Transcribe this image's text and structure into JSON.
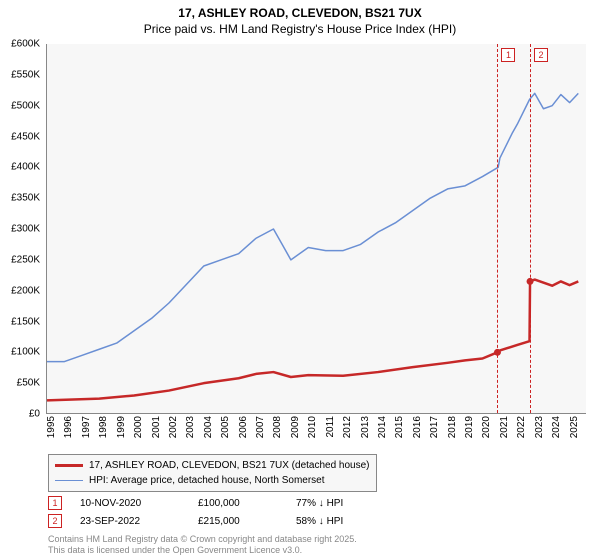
{
  "title": {
    "line1": "17, ASHLEY ROAD, CLEVEDON, BS21 7UX",
    "line2": "Price paid vs. HM Land Registry's House Price Index (HPI)"
  },
  "chart": {
    "type": "line",
    "background_color": "#f7f7f7",
    "axis_color": "#888888",
    "x_range": [
      1995,
      2026
    ],
    "y_range": [
      0,
      600
    ],
    "y_unit_prefix": "£",
    "y_unit_suffix": "K",
    "y_ticks": [
      0,
      50,
      100,
      150,
      200,
      250,
      300,
      350,
      400,
      450,
      500,
      550,
      600
    ],
    "x_ticks": [
      1995,
      1996,
      1997,
      1998,
      1999,
      2000,
      2001,
      2002,
      2003,
      2004,
      2005,
      2006,
      2007,
      2008,
      2009,
      2010,
      2011,
      2012,
      2013,
      2014,
      2015,
      2016,
      2017,
      2018,
      2019,
      2020,
      2021,
      2022,
      2023,
      2024,
      2025
    ],
    "series": [
      {
        "id": "hpi",
        "label": "HPI: Average price, detached house, North Somerset",
        "color": "#6a8fd4",
        "line_width": 1.5,
        "points": [
          [
            1995,
            85
          ],
          [
            1996,
            85
          ],
          [
            1997,
            95
          ],
          [
            1998,
            105
          ],
          [
            1999,
            115
          ],
          [
            2000,
            135
          ],
          [
            2001,
            155
          ],
          [
            2002,
            180
          ],
          [
            2003,
            210
          ],
          [
            2004,
            240
          ],
          [
            2005,
            250
          ],
          [
            2006,
            260
          ],
          [
            2007,
            285
          ],
          [
            2008,
            300
          ],
          [
            2008.5,
            275
          ],
          [
            2009,
            250
          ],
          [
            2010,
            270
          ],
          [
            2011,
            265
          ],
          [
            2012,
            265
          ],
          [
            2013,
            275
          ],
          [
            2014,
            295
          ],
          [
            2015,
            310
          ],
          [
            2016,
            330
          ],
          [
            2017,
            350
          ],
          [
            2018,
            365
          ],
          [
            2019,
            370
          ],
          [
            2020,
            385
          ],
          [
            2020.9,
            400
          ],
          [
            2021,
            415
          ],
          [
            2021.7,
            455
          ],
          [
            2022,
            470
          ],
          [
            2022.7,
            510
          ],
          [
            2023,
            520
          ],
          [
            2023.5,
            495
          ],
          [
            2024,
            500
          ],
          [
            2024.5,
            518
          ],
          [
            2025,
            505
          ],
          [
            2025.5,
            520
          ]
        ]
      },
      {
        "id": "price_paid",
        "label": "17, ASHLEY ROAD, CLEVEDON, BS21 7UX (detached house)",
        "color": "#c62828",
        "line_width": 2.5,
        "points": [
          [
            1995,
            22
          ],
          [
            1998,
            25
          ],
          [
            2000,
            30
          ],
          [
            2002,
            38
          ],
          [
            2004,
            50
          ],
          [
            2006,
            58
          ],
          [
            2007,
            65
          ],
          [
            2008,
            68
          ],
          [
            2009,
            60
          ],
          [
            2010,
            63
          ],
          [
            2012,
            62
          ],
          [
            2014,
            68
          ],
          [
            2016,
            76
          ],
          [
            2018,
            83
          ],
          [
            2019,
            87
          ],
          [
            2020,
            90
          ],
          [
            2020.86,
            100
          ],
          [
            2021,
            103
          ],
          [
            2022,
            112
          ],
          [
            2022.7,
            118
          ],
          [
            2022.73,
            215
          ],
          [
            2023,
            218
          ],
          [
            2024,
            208
          ],
          [
            2024.5,
            215
          ],
          [
            2025,
            209
          ],
          [
            2025.5,
            215
          ]
        ],
        "markers": [
          {
            "x": 2020.86,
            "y": 100
          },
          {
            "x": 2022.73,
            "y": 215
          }
        ]
      }
    ],
    "event_markers": [
      {
        "n": "1",
        "x": 2020.86,
        "line_color": "#cc2222"
      },
      {
        "n": "2",
        "x": 2022.73,
        "line_color": "#cc2222"
      }
    ]
  },
  "legend": {
    "rows": [
      {
        "color": "#c62828",
        "width": 3,
        "label": "17, ASHLEY ROAD, CLEVEDON, BS21 7UX (detached house)"
      },
      {
        "color": "#6a8fd4",
        "width": 1.5,
        "label": "HPI: Average price, detached house, North Somerset"
      }
    ]
  },
  "events_table": {
    "rows": [
      {
        "n": "1",
        "date": "10-NOV-2020",
        "price": "£100,000",
        "pct": "77% ↓ HPI"
      },
      {
        "n": "2",
        "date": "23-SEP-2022",
        "price": "£215,000",
        "pct": "58% ↓ HPI"
      }
    ]
  },
  "attribution": {
    "line1": "Contains HM Land Registry data © Crown copyright and database right 2025.",
    "line2": "This data is licensed under the Open Government Licence v3.0."
  },
  "fonts": {
    "title_size_pt": 12,
    "axis_tick_size_pt": 10,
    "legend_size_pt": 10,
    "attribution_size_pt": 9
  }
}
